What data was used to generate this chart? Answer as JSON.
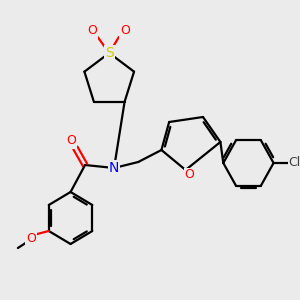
{
  "bg_color": "#ebebeb",
  "atom_colors": {
    "S": "#cccc00",
    "O": "#ff0000",
    "N": "#0000ff",
    "Cl": "#404040",
    "C": "#000000"
  },
  "line_color": "#000000",
  "line_width": 1.6,
  "font_size": 9
}
